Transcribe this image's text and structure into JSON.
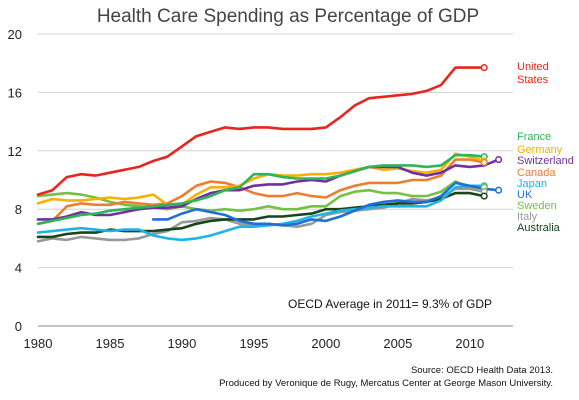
{
  "chart_data": {
    "type": "line",
    "title": "Health Care Spending as Percentage of GDP",
    "xlabel": "",
    "ylabel": "",
    "xlim": [
      1980,
      2013
    ],
    "ylim": [
      0,
      20
    ],
    "x_ticks": [
      "1980",
      "1985",
      "1990",
      "1995",
      "2000",
      "2005",
      "2010"
    ],
    "y_ticks": [
      "0",
      "4",
      "8",
      "12",
      "16",
      "20"
    ],
    "grid": true,
    "legend": "right",
    "annotation": "OECD Average in 2011= 9.3% of GDP",
    "source_lines": [
      "Source: OECD Health Data 2013.",
      "Produced by Veronique de Rugy, Mercatus Center at George Mason University."
    ],
    "series": [
      {
        "name": "United States",
        "label_lines": [
          "United",
          "States"
        ],
        "color": "#e8251e",
        "end_marker": true,
        "x": [
          1980,
          1981,
          1982,
          1983,
          1984,
          1985,
          1986,
          1987,
          1988,
          1989,
          1990,
          1991,
          1992,
          1993,
          1994,
          1995,
          1996,
          1997,
          1998,
          1999,
          2000,
          2001,
          2002,
          2003,
          2004,
          2005,
          2006,
          2007,
          2008,
          2009,
          2010,
          2011
        ],
        "y": [
          9.0,
          9.3,
          10.2,
          10.4,
          10.3,
          10.5,
          10.7,
          10.9,
          11.3,
          11.6,
          12.3,
          13.0,
          13.3,
          13.6,
          13.5,
          13.6,
          13.6,
          13.5,
          13.5,
          13.5,
          13.6,
          14.3,
          15.1,
          15.6,
          15.7,
          15.8,
          15.9,
          16.1,
          16.5,
          17.7,
          17.7,
          17.7
        ]
      },
      {
        "name": "France",
        "label_lines": [
          "France"
        ],
        "color": "#2eb55a",
        "end_marker": true,
        "x": [
          1980,
          1981,
          1982,
          1983,
          1984,
          1985,
          1986,
          1987,
          1988,
          1989,
          1990,
          1991,
          1992,
          1993,
          1994,
          1995,
          1996,
          1997,
          1998,
          1999,
          2000,
          2001,
          2002,
          2003,
          2004,
          2005,
          2006,
          2007,
          2008,
          2009,
          2010,
          2011
        ],
        "y": [
          7.0,
          7.2,
          7.4,
          7.6,
          7.7,
          7.9,
          8.0,
          8.1,
          8.2,
          8.3,
          8.4,
          8.6,
          8.9,
          9.3,
          9.5,
          10.4,
          10.4,
          10.2,
          10.1,
          10.1,
          10.1,
          10.3,
          10.6,
          10.9,
          11.0,
          11.0,
          11.0,
          10.9,
          11.0,
          11.7,
          11.7,
          11.6
        ]
      },
      {
        "name": "Germany",
        "label_lines": [
          "Germany"
        ],
        "color": "#f9b000",
        "end_marker": true,
        "x": [
          1980,
          1981,
          1982,
          1983,
          1984,
          1985,
          1986,
          1987,
          1988,
          1989,
          1990,
          1991,
          1992,
          1993,
          1994,
          1995,
          1996,
          1997,
          1998,
          1999,
          2000,
          2001,
          2002,
          2003,
          2004,
          2005,
          2006,
          2007,
          2008,
          2009,
          2010,
          2011
        ],
        "y": [
          8.4,
          8.7,
          8.6,
          8.6,
          8.7,
          8.8,
          8.7,
          8.8,
          9.0,
          8.3,
          8.3,
          9.0,
          9.5,
          9.5,
          9.6,
          10.1,
          10.4,
          10.3,
          10.3,
          10.4,
          10.4,
          10.5,
          10.7,
          10.9,
          10.7,
          10.8,
          10.6,
          10.5,
          10.7,
          11.8,
          11.6,
          11.3
        ]
      },
      {
        "name": "Switzerland",
        "label_lines": [
          "Switzerland"
        ],
        "color": "#7030a0",
        "end_marker": true,
        "x": [
          1980,
          1981,
          1982,
          1983,
          1984,
          1985,
          1986,
          1987,
          1988,
          1989,
          1990,
          1991,
          1992,
          1993,
          1994,
          1995,
          1996,
          1997,
          1998,
          1999,
          2000,
          2001,
          2002,
          2003,
          2004,
          2005,
          2006,
          2007,
          2008,
          2009,
          2010,
          2011,
          2012
        ],
        "y": [
          7.3,
          7.3,
          7.5,
          7.8,
          7.6,
          7.6,
          7.8,
          8.0,
          8.1,
          8.1,
          8.2,
          8.7,
          9.1,
          9.3,
          9.3,
          9.6,
          9.7,
          9.7,
          9.9,
          10.0,
          9.9,
          10.3,
          10.6,
          10.9,
          10.9,
          10.9,
          10.5,
          10.3,
          10.5,
          11.0,
          10.9,
          11.0,
          11.4
        ]
      },
      {
        "name": "Canada",
        "label_lines": [
          "Canada"
        ],
        "color": "#ed7d31",
        "end_marker": true,
        "x": [
          1980,
          1981,
          1982,
          1983,
          1984,
          1985,
          1986,
          1987,
          1988,
          1989,
          1990,
          1991,
          1992,
          1993,
          1994,
          1995,
          1996,
          1997,
          1998,
          1999,
          2000,
          2001,
          2002,
          2003,
          2004,
          2005,
          2006,
          2007,
          2008,
          2009,
          2010,
          2011
        ],
        "y": [
          7.0,
          7.2,
          8.2,
          8.4,
          8.3,
          8.3,
          8.5,
          8.4,
          8.3,
          8.4,
          8.9,
          9.6,
          9.9,
          9.8,
          9.5,
          9.1,
          8.9,
          8.9,
          9.1,
          8.9,
          8.8,
          9.3,
          9.6,
          9.8,
          9.8,
          9.8,
          10.0,
          10.0,
          10.3,
          11.4,
          11.4,
          11.2
        ]
      },
      {
        "name": "Japan",
        "label_lines": [
          "Japan"
        ],
        "color": "#1fb4e6",
        "end_marker": true,
        "x": [
          1980,
          1981,
          1982,
          1983,
          1984,
          1985,
          1986,
          1987,
          1988,
          1989,
          1990,
          1991,
          1992,
          1993,
          1994,
          1995,
          1996,
          1997,
          1998,
          1999,
          2000,
          2001,
          2002,
          2003,
          2004,
          2005,
          2006,
          2007,
          2008,
          2009,
          2010,
          2011
        ],
        "y": [
          6.4,
          6.5,
          6.6,
          6.7,
          6.6,
          6.5,
          6.6,
          6.6,
          6.2,
          6.0,
          5.9,
          6.0,
          6.2,
          6.5,
          6.8,
          6.8,
          6.9,
          7.0,
          7.2,
          7.5,
          7.7,
          7.9,
          8.0,
          8.1,
          8.2,
          8.2,
          8.2,
          8.2,
          8.6,
          9.5,
          9.6,
          9.6
        ]
      },
      {
        "name": "UK",
        "label_lines": [
          "UK"
        ],
        "color": "#1f6fd9",
        "end_marker": true,
        "x": [
          1988,
          1989,
          1990,
          1991,
          1992,
          1993,
          1994,
          1995,
          1996,
          1997,
          1998,
          1999,
          2000,
          2001,
          2002,
          2003,
          2004,
          2005,
          2006,
          2007,
          2008,
          2009,
          2010,
          2011,
          2012
        ],
        "y": [
          7.3,
          7.3,
          7.7,
          8.0,
          7.8,
          7.6,
          7.2,
          7.0,
          7.0,
          6.9,
          7.0,
          7.3,
          7.2,
          7.5,
          7.9,
          8.3,
          8.5,
          8.6,
          8.5,
          8.5,
          8.9,
          9.8,
          9.6,
          9.4,
          9.3
        ]
      },
      {
        "name": "Sweden",
        "label_lines": [
          "Sweden"
        ],
        "color": "#76c043",
        "end_marker": true,
        "x": [
          1980,
          1981,
          1982,
          1983,
          1984,
          1985,
          1986,
          1987,
          1988,
          1989,
          1990,
          1991,
          1992,
          1993,
          1994,
          1995,
          1996,
          1997,
          1998,
          1999,
          2000,
          2001,
          2002,
          2003,
          2004,
          2005,
          2006,
          2007,
          2008,
          2009,
          2010,
          2011
        ],
        "y": [
          8.9,
          9.0,
          9.1,
          9.0,
          8.8,
          8.5,
          8.3,
          8.2,
          8.1,
          8.0,
          8.2,
          8.0,
          7.9,
          8.0,
          7.9,
          8.0,
          8.2,
          8.0,
          8.0,
          8.2,
          8.2,
          8.9,
          9.2,
          9.3,
          9.1,
          9.1,
          8.9,
          8.9,
          9.2,
          9.9,
          9.5,
          9.5
        ]
      },
      {
        "name": "Italy",
        "label_lines": [
          "Italy"
        ],
        "color": "#999999",
        "end_marker": true,
        "x": [
          1980,
          1981,
          1982,
          1983,
          1984,
          1985,
          1986,
          1987,
          1988,
          1989,
          1990,
          1991,
          1992,
          1993,
          1994,
          1995,
          1996,
          1997,
          1998,
          1999,
          2000,
          2001,
          2002,
          2003,
          2004,
          2005,
          2006,
          2007,
          2008,
          2009,
          2010,
          2011
        ],
        "y": [
          5.8,
          6.0,
          5.9,
          6.1,
          6.0,
          5.9,
          5.9,
          6.0,
          6.3,
          6.5,
          7.1,
          7.2,
          7.4,
          7.3,
          7.0,
          6.9,
          7.0,
          6.9,
          6.8,
          7.0,
          7.6,
          7.8,
          7.9,
          8.0,
          8.1,
          8.4,
          8.7,
          8.6,
          8.8,
          9.4,
          9.4,
          9.2
        ]
      },
      {
        "name": "Australia",
        "label_lines": [
          "Australia"
        ],
        "color": "#17451c",
        "end_marker": true,
        "x": [
          1980,
          1981,
          1982,
          1983,
          1984,
          1985,
          1986,
          1987,
          1988,
          1989,
          1990,
          1991,
          1992,
          1993,
          1994,
          1995,
          1996,
          1997,
          1998,
          1999,
          2000,
          2001,
          2002,
          2003,
          2004,
          2005,
          2006,
          2007,
          2008,
          2009,
          2010,
          2011
        ],
        "y": [
          6.1,
          6.1,
          6.3,
          6.4,
          6.4,
          6.6,
          6.5,
          6.5,
          6.5,
          6.6,
          6.7,
          7.0,
          7.2,
          7.3,
          7.3,
          7.3,
          7.5,
          7.5,
          7.6,
          7.7,
          8.0,
          8.0,
          8.1,
          8.2,
          8.3,
          8.4,
          8.4,
          8.5,
          8.7,
          9.1,
          9.1,
          8.9
        ]
      }
    ]
  }
}
